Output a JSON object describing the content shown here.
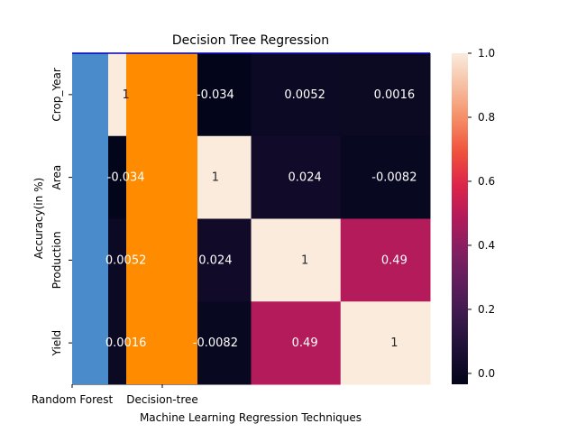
{
  "chart_data": {
    "type": "heatmap",
    "title": "Decision Tree Regression",
    "xlabel": "Machine Learning Regression Techniques",
    "ylabel": "Accuracy(in %)",
    "row_labels": [
      "Crop_Year",
      "Area",
      "Production",
      "Yield"
    ],
    "values": [
      [
        1,
        -0.034,
        0.0052,
        0.0016
      ],
      [
        -0.034,
        1,
        0.024,
        -0.0082
      ],
      [
        0.0052,
        0.024,
        1,
        0.49
      ],
      [
        0.0016,
        -0.0082,
        0.49,
        1
      ]
    ],
    "cell_labels": [
      [
        "1",
        "-0.034",
        "0.0052",
        "0.0016"
      ],
      [
        "-0.034",
        "1",
        "0.024",
        "-0.0082"
      ],
      [
        "0.0052",
        "0.024",
        "1",
        "0.49"
      ],
      [
        "0.0016",
        "-0.0082",
        "0.49",
        "1"
      ]
    ],
    "colorbar": {
      "range": [
        -0.034,
        1.0
      ],
      "ticks": [
        0.0,
        0.2,
        0.4,
        0.6,
        0.8,
        1.0
      ],
      "tick_labels": [
        "0.0",
        "0.2",
        "0.4",
        "0.6",
        "0.8",
        "1.0"
      ],
      "colormap": "rocket"
    },
    "bar_overlay": {
      "categories": [
        "Random Forest",
        "Decision-tree"
      ],
      "colors": [
        "#4a8bcb",
        "#ff8c00"
      ]
    },
    "grid": false,
    "legend": "none"
  }
}
